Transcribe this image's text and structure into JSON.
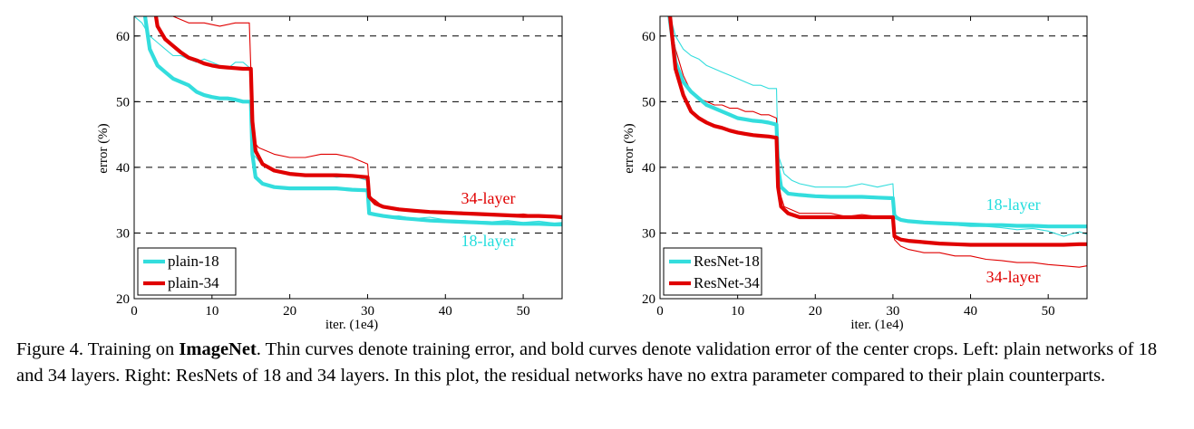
{
  "chart_data": [
    {
      "type": "line",
      "panel": "left",
      "xlabel": "iter. (1e4)",
      "ylabel": "error (%)",
      "xlim": [
        0,
        55
      ],
      "ylim": [
        20,
        63
      ],
      "xticks": [
        0,
        10,
        20,
        30,
        40,
        50
      ],
      "yticks": [
        20,
        30,
        40,
        50,
        60
      ],
      "grid": "dashed horizontal at 30, 40, 50, 60",
      "legend": {
        "placement": "bottom-left",
        "entries": [
          "plain-18",
          "plain-34"
        ]
      },
      "annotations": [
        {
          "text": "34-layer",
          "color": "#e00000",
          "x": 45.5,
          "y": 34.5
        },
        {
          "text": "18-layer",
          "color": "#22dddd",
          "x": 45.5,
          "y": 28.0
        }
      ],
      "series": [
        {
          "name": "plain-18 (train)",
          "role": "train",
          "color": "#33dddd",
          "width": "thin",
          "x": [
            0,
            1,
            2,
            3,
            4,
            5,
            6,
            7,
            8,
            9,
            10,
            11,
            12,
            13,
            14,
            15,
            15.3,
            16,
            17,
            18,
            20,
            22,
            24,
            26,
            28,
            30,
            30.3,
            31,
            32,
            34,
            36,
            38,
            40,
            42,
            44,
            46,
            48,
            50,
            52,
            54,
            55
          ],
          "y": [
            63,
            62,
            60,
            59,
            58,
            57,
            57,
            56.5,
            56,
            56.5,
            56,
            55.5,
            55,
            56,
            56,
            55,
            42,
            41,
            40,
            39.5,
            39,
            38.8,
            39,
            38.5,
            38.7,
            38,
            33,
            32.8,
            32.5,
            32.6,
            32.2,
            32.4,
            32,
            31.9,
            31.8,
            31.7,
            31.9,
            31.6,
            31.8,
            31.5,
            31.6
          ]
        },
        {
          "name": "plain-34 (train)",
          "role": "train",
          "color": "#e00000",
          "width": "thin",
          "x": [
            0,
            3,
            5,
            7,
            9,
            11,
            13,
            14.8,
            15.3,
            16,
            17,
            18,
            20,
            22,
            24,
            26,
            28,
            30,
            30.3,
            31,
            32,
            34,
            36,
            38,
            40,
            42,
            44,
            46,
            48,
            50,
            52,
            54,
            55
          ],
          "y": [
            63,
            63,
            63,
            62,
            62,
            61.5,
            62,
            62,
            44,
            43,
            42.5,
            42,
            41.5,
            41.5,
            42,
            42,
            41.5,
            40.5,
            35.5,
            35,
            34,
            33.8,
            33.5,
            33.2,
            33,
            33.2,
            32.8,
            33,
            32.7,
            32.9,
            32.6,
            32.5,
            32.4
          ]
        },
        {
          "name": "plain-18",
          "role": "val",
          "color": "#33dddd",
          "width": "bold",
          "x": [
            1.4,
            2,
            3,
            4,
            5,
            6,
            7,
            8,
            9,
            10,
            11,
            12,
            13,
            14,
            15,
            15.2,
            15.6,
            16.5,
            18,
            20,
            22,
            24,
            26,
            28,
            30,
            30.2,
            31,
            32,
            34,
            36,
            38,
            40,
            42,
            44,
            46,
            48,
            50,
            52,
            54,
            55
          ],
          "y": [
            63,
            58,
            55.5,
            54.5,
            53.5,
            53,
            52.5,
            51.5,
            51,
            50.7,
            50.5,
            50.5,
            50.3,
            50,
            50,
            42,
            38.5,
            37.5,
            37,
            36.8,
            36.8,
            36.8,
            36.8,
            36.6,
            36.5,
            33,
            32.8,
            32.6,
            32.3,
            32.1,
            31.9,
            31.8,
            31.7,
            31.6,
            31.5,
            31.5,
            31.4,
            31.4,
            31.3,
            31.3
          ]
        },
        {
          "name": "plain-34",
          "role": "val",
          "color": "#e00000",
          "width": "bold",
          "x": [
            2.8,
            3,
            4,
            5,
            6,
            7,
            8,
            9,
            10,
            11,
            12,
            13,
            14,
            15,
            15.2,
            15.6,
            16.5,
            18,
            20,
            22,
            24,
            26,
            28,
            30,
            30.2,
            31,
            32,
            34,
            36,
            38,
            40,
            42,
            44,
            46,
            48,
            50,
            52,
            54,
            55
          ],
          "y": [
            63,
            61.5,
            59.5,
            58.5,
            57.5,
            56.7,
            56.3,
            55.8,
            55.5,
            55.3,
            55.2,
            55.1,
            55,
            55,
            47,
            42.5,
            40.5,
            39.5,
            39,
            38.8,
            38.8,
            38.8,
            38.7,
            38.5,
            35.5,
            34.5,
            34,
            33.6,
            33.4,
            33.2,
            33.1,
            33,
            32.9,
            32.8,
            32.7,
            32.6,
            32.6,
            32.5,
            32.4
          ]
        }
      ]
    },
    {
      "type": "line",
      "panel": "right",
      "xlabel": "iter. (1e4)",
      "ylabel": "error (%)",
      "xlim": [
        0,
        55
      ],
      "ylim": [
        20,
        63
      ],
      "xticks": [
        0,
        10,
        20,
        30,
        40,
        50
      ],
      "yticks": [
        20,
        30,
        40,
        50,
        60
      ],
      "grid": "dashed horizontal at 30, 40, 50, 60",
      "legend": {
        "placement": "bottom-left",
        "entries": [
          "ResNet-18",
          "ResNet-34"
        ]
      },
      "annotations": [
        {
          "text": "18-layer",
          "color": "#22dddd",
          "x": 45.5,
          "y": 33.5
        },
        {
          "text": "34-layer",
          "color": "#e00000",
          "x": 45.5,
          "y": 22.5
        }
      ],
      "series": [
        {
          "name": "ResNet-18 (train)",
          "role": "train",
          "color": "#33dddd",
          "width": "thin",
          "x": [
            1.3,
            2,
            3,
            4,
            5,
            6,
            7,
            8,
            9,
            10,
            11,
            12,
            13,
            14,
            15,
            15.2,
            16,
            17,
            18,
            20,
            22,
            24,
            26,
            28,
            30,
            30.2,
            31,
            32,
            34,
            36,
            38,
            40,
            42,
            44,
            46,
            48,
            50,
            52,
            54,
            55
          ],
          "y": [
            63,
            60,
            58,
            57,
            56.5,
            55.5,
            55,
            54.5,
            54,
            53.5,
            53,
            52.5,
            52.5,
            52,
            52,
            42,
            39,
            38,
            37.5,
            37,
            37,
            37,
            37.5,
            37,
            37.5,
            33,
            32,
            31.8,
            31.5,
            31.4,
            31.2,
            31,
            31,
            30.8,
            30.5,
            30.7,
            30.3,
            29.5,
            30.2,
            29.8
          ]
        },
        {
          "name": "ResNet-34 (train)",
          "role": "train",
          "color": "#e00000",
          "width": "thin",
          "x": [
            1.2,
            2,
            3,
            4,
            5,
            6,
            7,
            8,
            9,
            10,
            11,
            12,
            13,
            14,
            15,
            15.2,
            16,
            17,
            18,
            20,
            22,
            24,
            26,
            28,
            30,
            30.2,
            31,
            32,
            34,
            36,
            38,
            40,
            42,
            44,
            46,
            48,
            50,
            52,
            54,
            55
          ],
          "y": [
            63,
            58,
            54,
            51.5,
            50.5,
            50,
            49.5,
            49.5,
            49,
            49,
            48.5,
            48.5,
            48,
            48,
            47.5,
            37,
            34,
            33.5,
            33,
            33,
            33,
            32.5,
            32.8,
            32.5,
            32.2,
            29,
            28,
            27.5,
            27,
            27,
            26.5,
            26.5,
            26,
            25.8,
            25.5,
            25.5,
            25.2,
            25,
            24.8,
            25
          ]
        },
        {
          "name": "ResNet-18",
          "role": "val",
          "color": "#33dddd",
          "width": "bold",
          "x": [
            1.2,
            2,
            3,
            4,
            5,
            6,
            7,
            8,
            9,
            10,
            11,
            12,
            13,
            14,
            15,
            15.2,
            15.6,
            16.5,
            18,
            20,
            22,
            24,
            26,
            28,
            30,
            30.2,
            31,
            32,
            34,
            36,
            38,
            40,
            42,
            44,
            46,
            48,
            50,
            52,
            54,
            55
          ],
          "y": [
            63,
            56,
            53,
            51.5,
            50.5,
            49.5,
            49,
            48.5,
            48,
            47.5,
            47.3,
            47.1,
            47,
            46.8,
            46.5,
            40,
            37,
            36,
            35.8,
            35.6,
            35.5,
            35.5,
            35.5,
            35.4,
            35.3,
            32.5,
            32,
            31.8,
            31.6,
            31.5,
            31.4,
            31.3,
            31.2,
            31.2,
            31.1,
            31.1,
            31,
            31,
            31,
            31
          ]
        },
        {
          "name": "ResNet-34",
          "role": "val",
          "color": "#e00000",
          "width": "bold",
          "x": [
            1.3,
            2,
            3,
            4,
            5,
            6,
            7,
            8,
            9,
            10,
            11,
            12,
            13,
            14,
            15,
            15.2,
            15.6,
            16.5,
            18,
            20,
            22,
            24,
            26,
            28,
            30,
            30.2,
            31,
            32,
            34,
            36,
            38,
            40,
            42,
            44,
            46,
            48,
            50,
            52,
            54,
            55
          ],
          "y": [
            63,
            55,
            51,
            48.5,
            47.5,
            46.8,
            46.3,
            46,
            45.6,
            45.3,
            45.1,
            44.9,
            44.8,
            44.7,
            44.5,
            37,
            34,
            33,
            32.4,
            32.4,
            32.4,
            32.4,
            32.4,
            32.4,
            32.4,
            29.5,
            29,
            28.8,
            28.6,
            28.4,
            28.3,
            28.2,
            28.2,
            28.2,
            28.2,
            28.2,
            28.2,
            28.2,
            28.3,
            28.3
          ]
        }
      ]
    }
  ],
  "caption": {
    "prefix": "Figure 4. Training on ",
    "bold": "ImageNet",
    "text": ". Thin curves denote training error, and bold curves denote validation error of the center crops. Left: plain networks of 18 and 34 layers. Right: ResNets of 18 and 34 layers. In this plot, the residual networks have no extra parameter compared to their plain counterparts."
  }
}
